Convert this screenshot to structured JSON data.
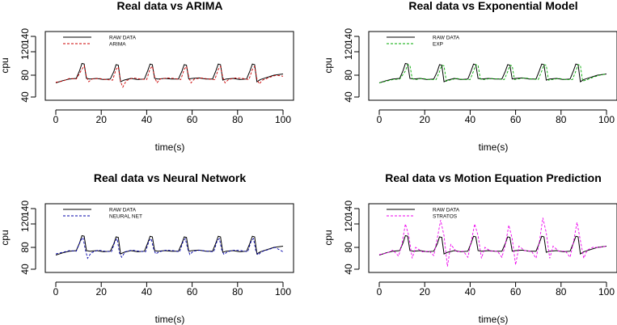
{
  "chart_data": [
    {
      "type": "line",
      "title": "Real data vs ARIMA",
      "xlabel": "time(s)",
      "ylabel": "cpu",
      "xlim": [
        0,
        100
      ],
      "ylim": [
        40,
        160
      ],
      "xticks": [
        "0",
        "20",
        "40",
        "60",
        "80",
        "100"
      ],
      "yticks": [
        "40",
        "80",
        "120",
        "140"
      ],
      "legend_position": "top-left",
      "series": [
        {
          "name": "RAW DATA",
          "color": "#000000",
          "style": "solid",
          "x": [
            0,
            3,
            6,
            9,
            10.5,
            11.5,
            12.5,
            13.5,
            15,
            18,
            21,
            24,
            25.5,
            26.5,
            27.5,
            28.5,
            30,
            33,
            36,
            39,
            40.5,
            41.5,
            42.5,
            43.5,
            45,
            48,
            51,
            54,
            55.5,
            56.5,
            57.5,
            58.5,
            60,
            63,
            66,
            69,
            70.5,
            71.5,
            72.5,
            73.5,
            75,
            78,
            81,
            84,
            85.5,
            86.5,
            87.5,
            88.5,
            90,
            93,
            96,
            100
          ],
          "y": [
            66,
            70,
            73,
            74,
            88,
            100,
            99,
            74,
            73,
            74,
            72,
            73,
            86,
            98,
            97,
            68,
            71,
            74,
            72,
            73,
            88,
            99,
            98,
            74,
            73,
            74,
            73,
            73,
            87,
            98,
            97,
            73,
            74,
            75,
            73,
            73,
            88,
            99,
            98,
            71,
            73,
            74,
            72,
            73,
            88,
            99,
            98,
            68,
            72,
            76,
            80,
            82
          ]
        },
        {
          "name": "ARIMA",
          "color": "#cc0000",
          "style": "dashed",
          "x": [
            0,
            3,
            6,
            9,
            11.5,
            12.5,
            13.5,
            14.5,
            16,
            19,
            22,
            25,
            26.5,
            27.5,
            28.5,
            29.5,
            31,
            34,
            37,
            40,
            41.5,
            42.5,
            43.5,
            44.5,
            46,
            49,
            52,
            55,
            56.5,
            57.5,
            58.5,
            59.5,
            61,
            64,
            67,
            70,
            71.5,
            72.5,
            73.5,
            74.5,
            76,
            79,
            82,
            85,
            86.5,
            87.5,
            88.5,
            89.5,
            91,
            94,
            97,
            100
          ],
          "y": [
            67,
            69,
            74,
            73,
            90,
            96,
            77,
            68,
            73,
            74,
            72,
            71,
            90,
            94,
            68,
            58,
            70,
            75,
            73,
            72,
            91,
            95,
            77,
            66,
            73,
            75,
            74,
            72,
            90,
            95,
            77,
            66,
            73,
            75,
            73,
            72,
            90,
            95,
            76,
            66,
            72,
            75,
            74,
            72,
            90,
            95,
            73,
            64,
            71,
            76,
            80,
            78
          ]
        }
      ]
    },
    {
      "type": "line",
      "title": "Real data vs Exponential Model",
      "xlabel": "time(s)",
      "ylabel": "cpu",
      "xlim": [
        0,
        100
      ],
      "ylim": [
        40,
        160
      ],
      "xticks": [
        "0",
        "20",
        "40",
        "60",
        "80",
        "100"
      ],
      "yticks": [
        "40",
        "80",
        "120",
        "140"
      ],
      "legend_position": "top-left",
      "series": [
        {
          "name": "RAW DATA",
          "color": "#000000",
          "style": "solid",
          "x": [
            0,
            3,
            6,
            9,
            10.5,
            11.5,
            12.5,
            13.5,
            15,
            18,
            21,
            24,
            25.5,
            26.5,
            27.5,
            28.5,
            30,
            33,
            36,
            39,
            40.5,
            41.5,
            42.5,
            43.5,
            45,
            48,
            51,
            54,
            55.5,
            56.5,
            57.5,
            58.5,
            60,
            63,
            66,
            69,
            70.5,
            71.5,
            72.5,
            73.5,
            75,
            78,
            81,
            84,
            85.5,
            86.5,
            87.5,
            88.5,
            90,
            93,
            96,
            100
          ],
          "y": [
            66,
            70,
            73,
            74,
            88,
            100,
            99,
            74,
            73,
            74,
            72,
            73,
            86,
            98,
            97,
            68,
            71,
            74,
            72,
            73,
            88,
            99,
            98,
            74,
            73,
            74,
            73,
            73,
            87,
            98,
            97,
            73,
            74,
            75,
            73,
            73,
            88,
            99,
            98,
            71,
            73,
            74,
            72,
            73,
            88,
            99,
            98,
            68,
            72,
            76,
            80,
            82
          ]
        },
        {
          "name": "EXP",
          "color": "#00aa00",
          "style": "dashed",
          "x": [
            0,
            3,
            6,
            9,
            11.5,
            12.5,
            13.5,
            14.5,
            16,
            19,
            22,
            25,
            26.5,
            27.5,
            28.5,
            29.5,
            31,
            34,
            37,
            40,
            41.5,
            42.5,
            43.5,
            44.5,
            46,
            49,
            52,
            55,
            56.5,
            57.5,
            58.5,
            59.5,
            61,
            64,
            67,
            70,
            71.5,
            72.5,
            73.5,
            74.5,
            76,
            79,
            82,
            85,
            86.5,
            87.5,
            88.5,
            89.5,
            91,
            94,
            97,
            100
          ],
          "y": [
            66,
            69,
            72,
            73,
            87,
            98,
            97,
            74,
            72,
            74,
            72,
            72,
            86,
            97,
            96,
            69,
            71,
            74,
            72,
            72,
            87,
            98,
            97,
            73,
            72,
            74,
            73,
            72,
            86,
            97,
            96,
            72,
            73,
            75,
            73,
            72,
            87,
            98,
            97,
            71,
            72,
            74,
            72,
            72,
            87,
            98,
            97,
            69,
            71,
            76,
            80,
            82
          ]
        }
      ]
    },
    {
      "type": "line",
      "title": "Real data vs Neural Network",
      "xlabel": "time(s)",
      "ylabel": "cpu",
      "xlim": [
        0,
        100
      ],
      "ylim": [
        40,
        160
      ],
      "xticks": [
        "0",
        "20",
        "40",
        "60",
        "80",
        "100"
      ],
      "yticks": [
        "40",
        "80",
        "120",
        "140"
      ],
      "legend_position": "top-left",
      "series": [
        {
          "name": "RAW DATA",
          "color": "#000000",
          "style": "solid",
          "x": [
            0,
            3,
            6,
            9,
            10.5,
            11.5,
            12.5,
            13.5,
            15,
            18,
            21,
            24,
            25.5,
            26.5,
            27.5,
            28.5,
            30,
            33,
            36,
            39,
            40.5,
            41.5,
            42.5,
            43.5,
            45,
            48,
            51,
            54,
            55.5,
            56.5,
            57.5,
            58.5,
            60,
            63,
            66,
            69,
            70.5,
            71.5,
            72.5,
            73.5,
            75,
            78,
            81,
            84,
            85.5,
            86.5,
            87.5,
            88.5,
            90,
            93,
            96,
            100
          ],
          "y": [
            66,
            70,
            73,
            74,
            88,
            100,
            99,
            74,
            73,
            74,
            72,
            73,
            86,
            98,
            97,
            68,
            71,
            74,
            72,
            73,
            88,
            99,
            98,
            74,
            73,
            74,
            73,
            73,
            87,
            98,
            97,
            73,
            74,
            75,
            73,
            73,
            88,
            99,
            98,
            71,
            73,
            74,
            72,
            73,
            88,
            99,
            98,
            68,
            72,
            76,
            80,
            82
          ]
        },
        {
          "name": "NEURAL NET",
          "color": "#0000aa",
          "style": "dashed",
          "x": [
            0,
            3,
            6,
            9,
            11,
            12,
            13,
            14,
            15.5,
            18.5,
            21.5,
            24.5,
            26,
            27,
            28,
            29,
            30.5,
            33.5,
            36.5,
            39.5,
            41,
            42,
            43,
            44,
            45.5,
            48.5,
            51.5,
            54.5,
            56,
            57,
            58,
            59,
            60.5,
            63.5,
            66.5,
            69.5,
            71,
            72,
            73,
            74,
            75.5,
            78.5,
            81.5,
            84.5,
            86,
            87,
            88,
            89,
            90.5,
            93.5,
            96.5,
            100
          ],
          "y": [
            68,
            71,
            74,
            73,
            92,
            97,
            76,
            60,
            70,
            75,
            73,
            72,
            90,
            95,
            70,
            62,
            72,
            75,
            73,
            72,
            91,
            95,
            78,
            68,
            72,
            75,
            74,
            72,
            90,
            95,
            78,
            67,
            73,
            75,
            73,
            72,
            91,
            95,
            76,
            67,
            72,
            75,
            74,
            72,
            91,
            95,
            74,
            66,
            72,
            76,
            80,
            72
          ]
        }
      ]
    },
    {
      "type": "line",
      "title": "Real data vs Motion Equation Prediction",
      "xlabel": "time(s)",
      "ylabel": "cpu",
      "xlim": [
        0,
        100
      ],
      "ylim": [
        40,
        160
      ],
      "xticks": [
        "0",
        "20",
        "40",
        "60",
        "80",
        "100"
      ],
      "yticks": [
        "40",
        "80",
        "120",
        "140"
      ],
      "legend_position": "top-left",
      "series": [
        {
          "name": "RAW DATA",
          "color": "#000000",
          "style": "solid",
          "x": [
            0,
            3,
            6,
            9,
            10.5,
            11.5,
            12.5,
            13.5,
            15,
            18,
            21,
            24,
            25.5,
            26.5,
            27.5,
            28.5,
            30,
            33,
            36,
            39,
            40.5,
            41.5,
            42.5,
            43.5,
            45,
            48,
            51,
            54,
            55.5,
            56.5,
            57.5,
            58.5,
            60,
            63,
            66,
            69,
            70.5,
            71.5,
            72.5,
            73.5,
            75,
            78,
            81,
            84,
            85.5,
            86.5,
            87.5,
            88.5,
            90,
            93,
            96,
            100
          ],
          "y": [
            66,
            70,
            73,
            74,
            88,
            100,
            99,
            74,
            73,
            74,
            72,
            73,
            86,
            98,
            97,
            68,
            71,
            74,
            72,
            73,
            88,
            99,
            98,
            74,
            73,
            74,
            73,
            73,
            87,
            98,
            97,
            73,
            74,
            75,
            73,
            73,
            88,
            99,
            98,
            71,
            73,
            74,
            72,
            73,
            88,
            99,
            98,
            68,
            72,
            76,
            80,
            82
          ]
        },
        {
          "name": "STRATOS",
          "color": "#ee00ee",
          "style": "dashed",
          "x": [
            0,
            3,
            6,
            8.5,
            10,
            11.5,
            13,
            14.5,
            16,
            19,
            22,
            24,
            25.5,
            27,
            28.5,
            30,
            31.5,
            34,
            37,
            39,
            40.5,
            42,
            43.5,
            45,
            46.5,
            49,
            52,
            54,
            55.5,
            57,
            58.5,
            60,
            61.5,
            64,
            67,
            69,
            70.5,
            72,
            73.5,
            75,
            76.5,
            79,
            82,
            84,
            85.5,
            87,
            88.5,
            90,
            91.5,
            94,
            97,
            100
          ],
          "y": [
            67,
            69,
            75,
            64,
            86,
            120,
            100,
            60,
            80,
            72,
            73,
            65,
            95,
            125,
            100,
            45,
            85,
            72,
            73,
            62,
            90,
            120,
            100,
            60,
            80,
            73,
            73,
            62,
            85,
            118,
            95,
            48,
            82,
            74,
            73,
            60,
            90,
            128,
            105,
            60,
            82,
            73,
            73,
            62,
            90,
            122,
            92,
            60,
            75,
            80,
            80,
            82
          ]
        }
      ]
    }
  ]
}
